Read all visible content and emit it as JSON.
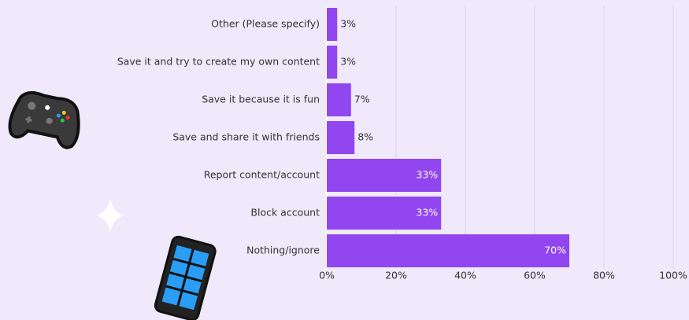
{
  "chart_data": {
    "type": "hbar",
    "categories": [
      "Other (Please specify)",
      "Save it and try to create my own content",
      "Save it because it is fun",
      "Save and share it with friends",
      "Report content/account",
      "Block account",
      "Nothing/ignore"
    ],
    "values": [
      3,
      3,
      7,
      8,
      33,
      33,
      70
    ],
    "value_labels": [
      "3%",
      "3%",
      "7%",
      "8%",
      "33%",
      "33%",
      "70%"
    ],
    "color": "#9146f0",
    "xlim": [
      0,
      100
    ],
    "xticks": [
      {
        "value": 0,
        "label": "0%"
      },
      {
        "value": 20,
        "label": "20%"
      },
      {
        "value": 40,
        "label": "40%"
      },
      {
        "value": 60,
        "label": "60%"
      },
      {
        "value": 80,
        "label": "80%"
      },
      {
        "value": 100,
        "label": "100%"
      }
    ],
    "grid": true
  }
}
